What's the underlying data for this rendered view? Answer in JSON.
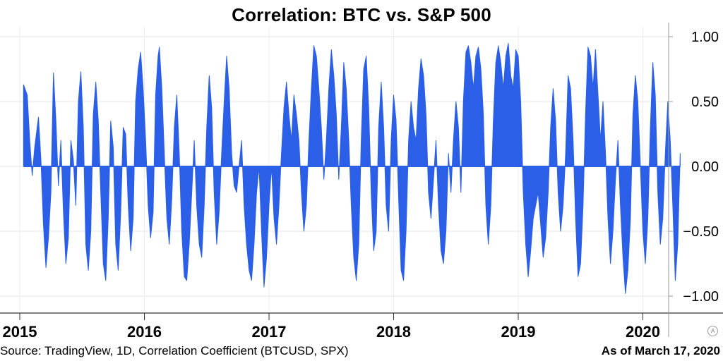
{
  "chart_data": {
    "type": "area",
    "title": "Correlation: BTC vs. S&P 500",
    "xlabel": "",
    "ylabel": "",
    "x_ticks": [
      "2015",
      "2016",
      "2017",
      "2018",
      "2019",
      "2020"
    ],
    "y_ticks": [
      {
        "value": 1.0,
        "label": "1.00"
      },
      {
        "value": 0.5,
        "label": "0.50"
      },
      {
        "value": 0.0,
        "label": "0.00"
      },
      {
        "value": -0.5,
        "label": "−0.50"
      },
      {
        "value": -1.0,
        "label": "−1.00"
      }
    ],
    "xlim": [
      2015.0,
      2020.3
    ],
    "ylim": [
      -1.1,
      1.05
    ],
    "grid": true,
    "legend": "none",
    "series": [
      {
        "color": "#2b5fe8",
        "points": [
          [
            2015.03,
            0.63
          ],
          [
            2015.06,
            0.55
          ],
          [
            2015.08,
            0.2
          ],
          [
            2015.1,
            -0.07
          ],
          [
            2015.12,
            0.15
          ],
          [
            2015.15,
            0.38
          ],
          [
            2015.17,
            0.05
          ],
          [
            2015.19,
            -0.45
          ],
          [
            2015.21,
            -0.78
          ],
          [
            2015.23,
            -0.55
          ],
          [
            2015.25,
            -0.2
          ],
          [
            2015.27,
            0.72
          ],
          [
            2015.29,
            0.35
          ],
          [
            2015.31,
            -0.15
          ],
          [
            2015.33,
            0.2
          ],
          [
            2015.35,
            -0.35
          ],
          [
            2015.37,
            -0.75
          ],
          [
            2015.39,
            -0.55
          ],
          [
            2015.41,
            0.2
          ],
          [
            2015.43,
            0.05
          ],
          [
            2015.45,
            -0.3
          ],
          [
            2015.47,
            0.5
          ],
          [
            2015.49,
            0.73
          ],
          [
            2015.51,
            0.3
          ],
          [
            2015.53,
            -0.6
          ],
          [
            2015.55,
            -0.8
          ],
          [
            2015.57,
            -0.5
          ],
          [
            2015.59,
            0.4
          ],
          [
            2015.61,
            0.65
          ],
          [
            2015.63,
            0.35
          ],
          [
            2015.65,
            -0.2
          ],
          [
            2015.67,
            -0.75
          ],
          [
            2015.69,
            -0.88
          ],
          [
            2015.71,
            -0.4
          ],
          [
            2015.73,
            0.35
          ],
          [
            2015.75,
            0.15
          ],
          [
            2015.77,
            -0.6
          ],
          [
            2015.79,
            -0.8
          ],
          [
            2015.81,
            -0.35
          ],
          [
            2015.83,
            0.3
          ],
          [
            2015.85,
            0.25
          ],
          [
            2015.87,
            -0.3
          ],
          [
            2015.89,
            -0.65
          ],
          [
            2015.91,
            -0.4
          ],
          [
            2015.93,
            0.5
          ],
          [
            2015.95,
            0.75
          ],
          [
            2015.97,
            0.88
          ],
          [
            2015.99,
            0.6
          ],
          [
            2016.01,
            0.2
          ],
          [
            2016.03,
            -0.3
          ],
          [
            2016.05,
            -0.55
          ],
          [
            2016.07,
            -0.35
          ],
          [
            2016.09,
            0.55
          ],
          [
            2016.11,
            0.85
          ],
          [
            2016.12,
            0.92
          ],
          [
            2016.14,
            0.6
          ],
          [
            2016.16,
            0.1
          ],
          [
            2016.18,
            -0.4
          ],
          [
            2016.2,
            -0.6
          ],
          [
            2016.22,
            -0.25
          ],
          [
            2016.24,
            0.3
          ],
          [
            2016.26,
            0.55
          ],
          [
            2016.28,
            0.1
          ],
          [
            2016.3,
            -0.5
          ],
          [
            2016.32,
            -0.85
          ],
          [
            2016.34,
            -0.88
          ],
          [
            2016.36,
            -0.6
          ],
          [
            2016.38,
            -0.2
          ],
          [
            2016.4,
            0.2
          ],
          [
            2016.42,
            -0.3
          ],
          [
            2016.44,
            -0.6
          ],
          [
            2016.46,
            -0.7
          ],
          [
            2016.48,
            -0.3
          ],
          [
            2016.5,
            0.3
          ],
          [
            2016.52,
            0.7
          ],
          [
            2016.54,
            0.45
          ],
          [
            2016.56,
            -0.2
          ],
          [
            2016.58,
            -0.6
          ],
          [
            2016.6,
            -0.35
          ],
          [
            2016.62,
            0.1
          ],
          [
            2016.64,
            0.5
          ],
          [
            2016.66,
            0.85
          ],
          [
            2016.68,
            0.6
          ],
          [
            2016.7,
            0.1
          ],
          [
            2016.72,
            -0.15
          ],
          [
            2016.74,
            -0.2
          ],
          [
            2016.76,
            0.0
          ],
          [
            2016.78,
            0.2
          ],
          [
            2016.8,
            -0.3
          ],
          [
            2016.82,
            -0.6
          ],
          [
            2016.84,
            -0.8
          ],
          [
            2016.86,
            -0.88
          ],
          [
            2016.88,
            -0.6
          ],
          [
            2016.9,
            -0.2
          ],
          [
            2016.92,
            0.0
          ],
          [
            2016.94,
            -0.5
          ],
          [
            2016.96,
            -0.93
          ],
          [
            2016.98,
            -0.7
          ],
          [
            2017.0,
            -0.3
          ],
          [
            2017.02,
            0.0
          ],
          [
            2017.04,
            -0.4
          ],
          [
            2017.06,
            -0.6
          ],
          [
            2017.08,
            -0.3
          ],
          [
            2017.1,
            0.1
          ],
          [
            2017.12,
            0.45
          ],
          [
            2017.14,
            0.65
          ],
          [
            2017.16,
            0.4
          ],
          [
            2017.18,
            0.2
          ],
          [
            2017.2,
            0.55
          ],
          [
            2017.22,
            0.4
          ],
          [
            2017.24,
            0.2
          ],
          [
            2017.26,
            -0.2
          ],
          [
            2017.28,
            -0.5
          ],
          [
            2017.3,
            -0.3
          ],
          [
            2017.32,
            0.2
          ],
          [
            2017.34,
            0.6
          ],
          [
            2017.36,
            0.93
          ],
          [
            2017.38,
            0.85
          ],
          [
            2017.4,
            0.6
          ],
          [
            2017.42,
            0.3
          ],
          [
            2017.44,
            -0.1
          ],
          [
            2017.46,
            0.2
          ],
          [
            2017.48,
            0.6
          ],
          [
            2017.5,
            0.9
          ],
          [
            2017.52,
            0.7
          ],
          [
            2017.54,
            0.4
          ],
          [
            2017.56,
            -0.1
          ],
          [
            2017.58,
            0.3
          ],
          [
            2017.6,
            0.8
          ],
          [
            2017.62,
            0.6
          ],
          [
            2017.64,
            0.2
          ],
          [
            2017.66,
            -0.3
          ],
          [
            2017.68,
            -0.7
          ],
          [
            2017.7,
            -0.88
          ],
          [
            2017.72,
            -0.6
          ],
          [
            2017.74,
            0.2
          ],
          [
            2017.76,
            0.75
          ],
          [
            2017.78,
            0.85
          ],
          [
            2017.8,
            0.45
          ],
          [
            2017.82,
            -0.2
          ],
          [
            2017.84,
            -0.65
          ],
          [
            2017.86,
            -0.5
          ],
          [
            2017.88,
            0.3
          ],
          [
            2017.9,
            0.65
          ],
          [
            2017.92,
            0.3
          ],
          [
            2017.94,
            -0.3
          ],
          [
            2017.96,
            -0.5
          ],
          [
            2017.98,
            0.2
          ],
          [
            2018.0,
            0.55
          ],
          [
            2018.02,
            0.35
          ],
          [
            2018.04,
            -0.25
          ],
          [
            2018.06,
            -0.8
          ],
          [
            2018.08,
            -0.88
          ],
          [
            2018.1,
            -0.5
          ],
          [
            2018.12,
            0.2
          ],
          [
            2018.14,
            0.5
          ],
          [
            2018.16,
            0.3
          ],
          [
            2018.18,
            0.2
          ],
          [
            2018.2,
            0.6
          ],
          [
            2018.22,
            0.83
          ],
          [
            2018.24,
            0.7
          ],
          [
            2018.26,
            0.4
          ],
          [
            2018.28,
            -0.2
          ],
          [
            2018.3,
            -0.4
          ],
          [
            2018.32,
            -0.1
          ],
          [
            2018.34,
            0.2
          ],
          [
            2018.36,
            -0.3
          ],
          [
            2018.38,
            -0.65
          ],
          [
            2018.4,
            -0.75
          ],
          [
            2018.42,
            -0.5
          ],
          [
            2018.44,
            0.1
          ],
          [
            2018.46,
            -0.2
          ],
          [
            2018.48,
            0.2
          ],
          [
            2018.5,
            0.5
          ],
          [
            2018.52,
            0.3
          ],
          [
            2018.54,
            -0.2
          ],
          [
            2018.56,
            0.5
          ],
          [
            2018.58,
            0.88
          ],
          [
            2018.6,
            0.93
          ],
          [
            2018.62,
            0.8
          ],
          [
            2018.64,
            0.6
          ],
          [
            2018.66,
            0.85
          ],
          [
            2018.68,
            0.92
          ],
          [
            2018.7,
            0.75
          ],
          [
            2018.72,
            0.4
          ],
          [
            2018.74,
            -0.3
          ],
          [
            2018.76,
            -0.6
          ],
          [
            2018.78,
            -0.3
          ],
          [
            2018.8,
            0.35
          ],
          [
            2018.82,
            0.8
          ],
          [
            2018.84,
            0.93
          ],
          [
            2018.86,
            0.8
          ],
          [
            2018.88,
            0.6
          ],
          [
            2018.9,
            0.85
          ],
          [
            2018.92,
            0.95
          ],
          [
            2018.94,
            0.7
          ],
          [
            2018.96,
            0.6
          ],
          [
            2018.98,
            0.9
          ],
          [
            2019.0,
            0.85
          ],
          [
            2019.02,
            0.5
          ],
          [
            2019.04,
            -0.2
          ],
          [
            2019.06,
            -0.6
          ],
          [
            2019.08,
            -0.85
          ],
          [
            2019.1,
            -0.65
          ],
          [
            2019.12,
            -0.4
          ],
          [
            2019.14,
            -0.3
          ],
          [
            2019.16,
            -0.2
          ],
          [
            2019.18,
            -0.45
          ],
          [
            2019.2,
            -0.7
          ],
          [
            2019.22,
            -0.55
          ],
          [
            2019.24,
            -0.2
          ],
          [
            2019.26,
            0.3
          ],
          [
            2019.28,
            0.6
          ],
          [
            2019.3,
            0.35
          ],
          [
            2019.32,
            -0.2
          ],
          [
            2019.34,
            -0.5
          ],
          [
            2019.36,
            -0.3
          ],
          [
            2019.38,
            0.1
          ],
          [
            2019.4,
            0.7
          ],
          [
            2019.42,
            0.6
          ],
          [
            2019.44,
            0.2
          ],
          [
            2019.46,
            -0.4
          ],
          [
            2019.48,
            -0.85
          ],
          [
            2019.5,
            -0.75
          ],
          [
            2019.52,
            -0.3
          ],
          [
            2019.54,
            0.4
          ],
          [
            2019.56,
            0.92
          ],
          [
            2019.58,
            0.85
          ],
          [
            2019.6,
            0.6
          ],
          [
            2019.62,
            0.9
          ],
          [
            2019.64,
            0.55
          ],
          [
            2019.66,
            0.2
          ],
          [
            2019.68,
            0.5
          ],
          [
            2019.7,
            0.1
          ],
          [
            2019.72,
            -0.4
          ],
          [
            2019.74,
            -0.75
          ],
          [
            2019.76,
            -0.5
          ],
          [
            2019.78,
            -0.1
          ],
          [
            2019.8,
            0.2
          ],
          [
            2019.82,
            -0.3
          ],
          [
            2019.84,
            -0.7
          ],
          [
            2019.86,
            -0.98
          ],
          [
            2019.88,
            -0.8
          ],
          [
            2019.9,
            -0.4
          ],
          [
            2019.92,
            0.4
          ],
          [
            2019.94,
            0.7
          ],
          [
            2019.96,
            0.5
          ],
          [
            2019.98,
            0.0
          ],
          [
            2020.0,
            -0.5
          ],
          [
            2020.02,
            -0.75
          ],
          [
            2020.04,
            -0.4
          ],
          [
            2020.06,
            0.3
          ],
          [
            2020.08,
            0.8
          ],
          [
            2020.1,
            0.55
          ],
          [
            2020.12,
            -0.2
          ],
          [
            2020.14,
            -0.6
          ],
          [
            2020.16,
            -0.4
          ],
          [
            2020.18,
            0.1
          ],
          [
            2020.2,
            0.5
          ],
          [
            2020.22,
            0.2
          ],
          [
            2020.24,
            -0.3
          ],
          [
            2020.26,
            -0.88
          ],
          [
            2020.28,
            -0.6
          ],
          [
            2020.3,
            0.1
          ]
        ]
      }
    ]
  },
  "footer": {
    "source": "Source: TradingView, 1D, Correlation Coefficient (BTCUSD, SPX)",
    "date": "As of March 17, 2020"
  },
  "watermark": "A"
}
